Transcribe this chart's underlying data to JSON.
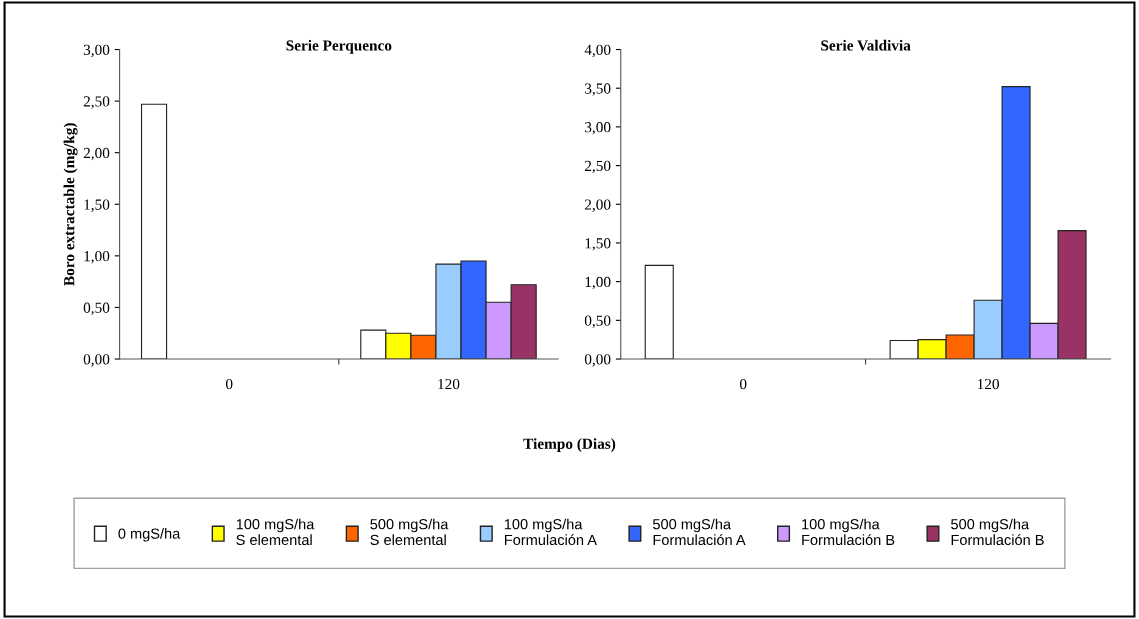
{
  "chart_data": [
    {
      "type": "bar",
      "title": "Serie Perquenco",
      "ylabel": "Boro extractable (mg/kg)",
      "xlabel": "Tiempo (Dias)",
      "categories": [
        "0",
        "120"
      ],
      "ylim": [
        0,
        3
      ],
      "yticks": [
        {
          "value": 0,
          "label": "0,00"
        },
        {
          "value": 0.5,
          "label": "0,50"
        },
        {
          "value": 1,
          "label": "1,00"
        },
        {
          "value": 1.5,
          "label": "1,50"
        },
        {
          "value": 2,
          "label": "2,00"
        },
        {
          "value": 2.5,
          "label": "2,50"
        },
        {
          "value": 3,
          "label": "3,00"
        }
      ],
      "grid": false,
      "legend": "bottom",
      "series": [
        {
          "name": "0 mgS/ha",
          "color": "#ffffff",
          "values": [
            2.47,
            0.28
          ]
        },
        {
          "name": "100 mgS/ha\nS elemental",
          "color": "#ffff00",
          "values": [
            null,
            0.25
          ]
        },
        {
          "name": "500 mgS/ha\nS elemental",
          "color": "#ff6600",
          "values": [
            null,
            0.23
          ]
        },
        {
          "name": "100 mgS/ha\nFormulación A",
          "color": "#99ccff",
          "values": [
            null,
            0.92
          ]
        },
        {
          "name": "500 mgS/ha\nFormulación A",
          "color": "#3366ff",
          "values": [
            null,
            0.95
          ]
        },
        {
          "name": "100 mgS/ha\nFormulación B",
          "color": "#cc99ff",
          "values": [
            null,
            0.55
          ]
        },
        {
          "name": "500 mgS/ha\nFormulación B",
          "color": "#993366",
          "values": [
            null,
            0.72
          ]
        }
      ]
    },
    {
      "type": "bar",
      "title": "Serie Valdivia",
      "categories": [
        "0",
        "120"
      ],
      "ylim": [
        0,
        4
      ],
      "yticks": [
        {
          "value": 0,
          "label": "0,00"
        },
        {
          "value": 0.5,
          "label": "0,50"
        },
        {
          "value": 1,
          "label": "1,00"
        },
        {
          "value": 1.5,
          "label": "1,50"
        },
        {
          "value": 2,
          "label": "2,00"
        },
        {
          "value": 2.5,
          "label": "2,50"
        },
        {
          "value": 3,
          "label": "3,00"
        },
        {
          "value": 3.5,
          "label": "3,50"
        },
        {
          "value": 4,
          "label": "4,00"
        }
      ],
      "grid": false,
      "series": [
        {
          "color": "#ffffff",
          "values": [
            1.21,
            0.24
          ]
        },
        {
          "color": "#ffff00",
          "values": [
            null,
            0.25
          ]
        },
        {
          "color": "#ff6600",
          "values": [
            null,
            0.31
          ]
        },
        {
          "color": "#99ccff",
          "values": [
            null,
            0.76
          ]
        },
        {
          "color": "#3366ff",
          "values": [
            null,
            3.52
          ]
        },
        {
          "color": "#cc99ff",
          "values": [
            null,
            0.46
          ]
        },
        {
          "color": "#993366",
          "values": [
            null,
            1.66
          ]
        }
      ]
    }
  ]
}
